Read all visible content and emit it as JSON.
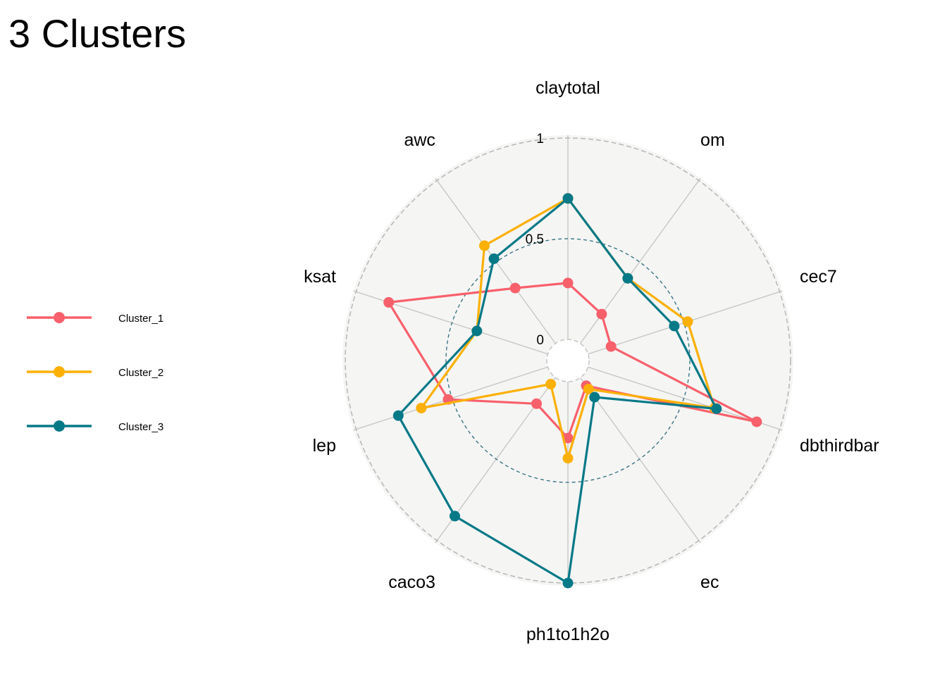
{
  "chart_data": {
    "type": "radar",
    "title": "3 Clusters",
    "axes": [
      "claytotal",
      "om",
      "cec7",
      "dbthirdbar",
      "ec",
      "ph1to1h2o",
      "caco3",
      "lep",
      "ksat",
      "awc"
    ],
    "grid_values": [
      0,
      0.5,
      1
    ],
    "grid_labels": [
      "0",
      "0.5",
      "1"
    ],
    "rlim": [
      0,
      1
    ],
    "legend_position": "left",
    "series": [
      {
        "name": "Cluster_1",
        "color": "#f8606b",
        "values": [
          0.28,
          0.18,
          0.12,
          0.88,
          0.05,
          0.28,
          0.16,
          0.52,
          0.83,
          0.34
        ]
      },
      {
        "name": "Cluster_2",
        "color": "#fbb005",
        "values": [
          0.7,
          0.4,
          0.52,
          0.66,
          0.07,
          0.38,
          0.04,
          0.66,
          0.37,
          0.6
        ]
      },
      {
        "name": "Cluster_3",
        "color": "#067987",
        "values": [
          0.7,
          0.4,
          0.45,
          0.67,
          0.12,
          1.0,
          0.85,
          0.78,
          0.37,
          0.52
        ]
      }
    ],
    "colors": {
      "panel_bg": "#f5f5f4",
      "spoke": "#c4c4c4",
      "outer_ring": "#b6b6b6",
      "mid_ring": "#2e6e7e",
      "center_ring": "#c4c4c4"
    }
  }
}
